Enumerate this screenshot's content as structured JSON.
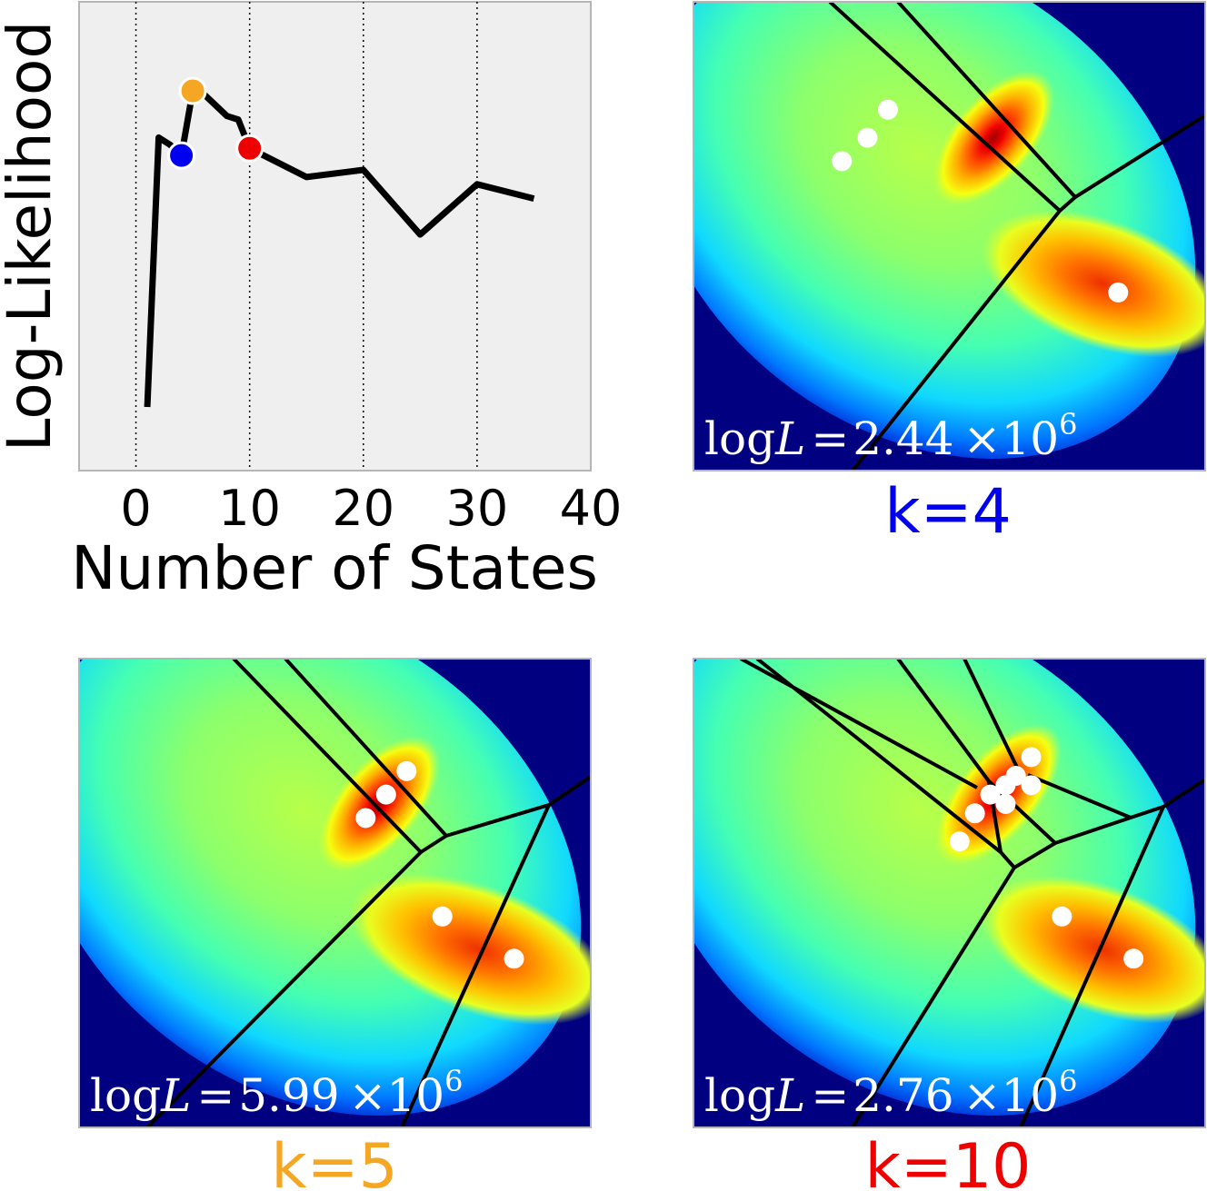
{
  "chart_data": [
    {
      "type": "line",
      "xlabel": "Number of States",
      "ylabel": "Log-Likelihood",
      "xlim": [
        -5,
        40
      ],
      "xticks": [
        0,
        10,
        20,
        30,
        40
      ],
      "y_tick_labels_shown": false,
      "grid": "vertical dotted lines at x ticks",
      "background_color": "#efefef",
      "line_color": "#000000",
      "series": [
        {
          "x": [
            1,
            2,
            3,
            4,
            5,
            6,
            7,
            8,
            9,
            10,
            15,
            20,
            25,
            30,
            35
          ],
          "y": [
            0.12,
            0.87,
            0.85,
            0.82,
            1.0,
            0.99,
            0.96,
            0.93,
            0.92,
            0.84,
            0.76,
            0.78,
            0.6,
            0.74,
            0.7
          ]
        }
      ],
      "highlighted_points": [
        {
          "x": 4,
          "y": 0.82,
          "color": "#0000ee"
        },
        {
          "x": 5,
          "y": 1.0,
          "color": "#f5a623"
        },
        {
          "x": 10,
          "y": 0.84,
          "color": "#ee0000"
        }
      ]
    },
    {
      "type": "heatmap",
      "colormap": "jet",
      "label": "k=4",
      "label_color": "#0000ee",
      "annotation": "log L = 2.44 ×10^6",
      "annotation_parts": {
        "prefix": "log",
        "var": "L",
        "eq": "=",
        "mantissa": "2.44",
        "times": "×10",
        "exponent": "6"
      },
      "centers": [
        [
          0.38,
          0.23
        ],
        [
          0.34,
          0.29
        ],
        [
          0.29,
          0.34
        ],
        [
          0.83,
          0.62
        ]
      ]
    },
    {
      "type": "heatmap",
      "colormap": "jet",
      "label": "k=5",
      "label_color": "#f5a623",
      "annotation": "log L = 5.99 ×10^6",
      "annotation_parts": {
        "prefix": "log",
        "var": "L",
        "eq": "=",
        "mantissa": "5.99",
        "times": "×10",
        "exponent": "6"
      },
      "centers": [
        [
          0.64,
          0.24
        ],
        [
          0.6,
          0.29
        ],
        [
          0.56,
          0.34
        ],
        [
          0.71,
          0.55
        ],
        [
          0.85,
          0.64
        ]
      ]
    },
    {
      "type": "heatmap",
      "colormap": "jet",
      "label": "k=10",
      "label_color": "#ee0000",
      "annotation": "log L = 2.76 ×10^6",
      "annotation_parts": {
        "prefix": "log",
        "var": "L",
        "eq": "=",
        "mantissa": "2.76",
        "times": "×10",
        "exponent": "6"
      },
      "centers": [
        [
          0.66,
          0.21
        ],
        [
          0.63,
          0.25
        ],
        [
          0.61,
          0.27
        ],
        [
          0.66,
          0.27
        ],
        [
          0.58,
          0.29
        ],
        [
          0.61,
          0.31
        ],
        [
          0.55,
          0.33
        ],
        [
          0.52,
          0.39
        ],
        [
          0.72,
          0.55
        ],
        [
          0.86,
          0.64
        ]
      ]
    }
  ]
}
